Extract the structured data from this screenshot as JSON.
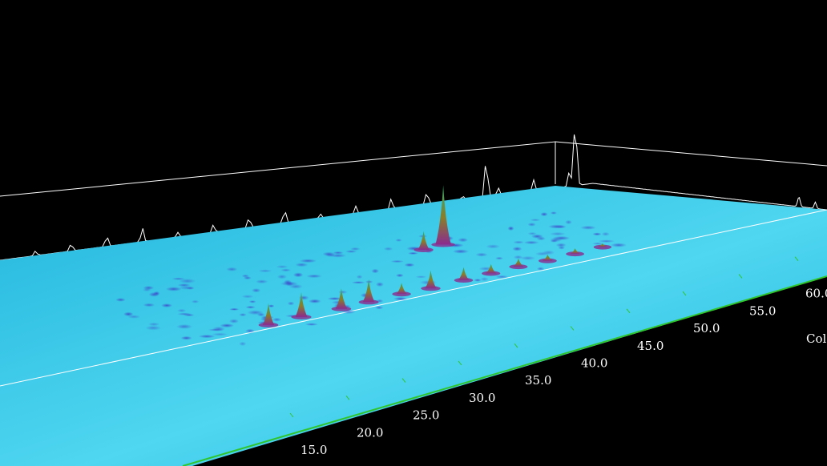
{
  "chart_data": {
    "type": "surface-3d",
    "axis": {
      "title": "Col",
      "ticks": [
        "15.0",
        "20.0",
        "25.0",
        "30.0",
        "35.0",
        "40.0",
        "45.0",
        "50.0",
        "55.0",
        "60.0"
      ]
    },
    "grid": false,
    "background": "#000000",
    "colors": {
      "surface": "#22b6dd",
      "surface_light": "#4fd6f0",
      "blob": "#3b3fc8",
      "peak_low": "#8b2a8f",
      "peak_mid": "#8a7d2a",
      "peak_high": "#2fae6a",
      "axis_line": "#2fc52f",
      "trace": "#ffffff"
    },
    "peaks": [
      {
        "first_dim": 19.5,
        "second_dim": 0.62,
        "height": 0.35
      },
      {
        "first_dim": 22.5,
        "second_dim": 0.62,
        "height": 0.4
      },
      {
        "first_dim": 26.0,
        "second_dim": 0.63,
        "height": 0.33
      },
      {
        "first_dim": 28.5,
        "second_dim": 0.63,
        "height": 0.37
      },
      {
        "first_dim": 31.5,
        "second_dim": 0.63,
        "height": 0.18
      },
      {
        "first_dim": 34.0,
        "second_dim": 0.64,
        "height": 0.29
      },
      {
        "first_dim": 37.0,
        "second_dim": 0.64,
        "height": 0.21
      },
      {
        "first_dim": 39.5,
        "second_dim": 0.64,
        "height": 0.15
      },
      {
        "first_dim": 42.0,
        "second_dim": 0.64,
        "height": 0.13
      },
      {
        "first_dim": 44.5,
        "second_dim": 0.65,
        "height": 0.1
      },
      {
        "first_dim": 47.0,
        "second_dim": 0.65,
        "height": 0.09
      },
      {
        "first_dim": 49.5,
        "second_dim": 0.65,
        "height": 0.06
      },
      {
        "first_dim": 40.0,
        "second_dim": 0.35,
        "height": 0.95
      },
      {
        "first_dim": 38.0,
        "second_dim": 0.36,
        "height": 0.3
      }
    ]
  }
}
